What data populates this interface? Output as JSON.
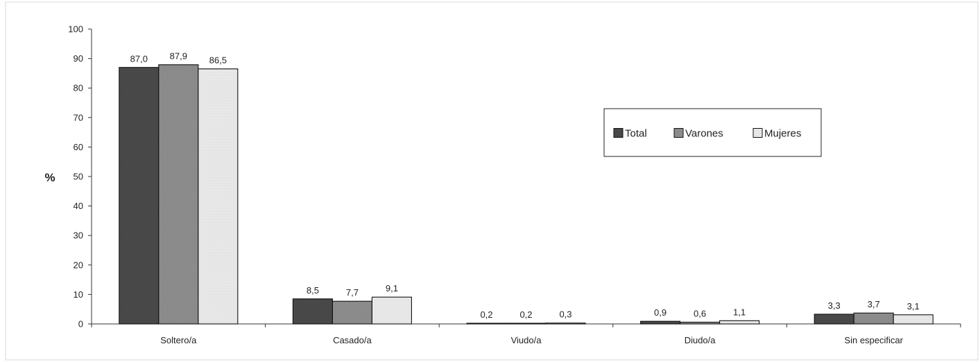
{
  "chart_data": {
    "type": "bar",
    "categories": [
      "Soltero/a",
      "Casado/a",
      "Viudo/a",
      "Diudo/a",
      "Sin especificar"
    ],
    "series": [
      {
        "name": "Total",
        "values": [
          87.0,
          8.5,
          0.2,
          0.9,
          3.3
        ],
        "labels": [
          "87,0",
          "8,5",
          "0,2",
          "0,9",
          "3,3"
        ],
        "color": "#4a4a4a"
      },
      {
        "name": "Varones",
        "values": [
          87.9,
          7.7,
          0.2,
          0.6,
          3.7
        ],
        "labels": [
          "87,9",
          "7,7",
          "0,2",
          "0,6",
          "3,7"
        ],
        "color": "#8e8e8e"
      },
      {
        "name": "Mujeres",
        "values": [
          86.5,
          9.1,
          0.3,
          1.1,
          3.1
        ],
        "labels": [
          "86,5",
          "9,1",
          "0,3",
          "1,1",
          "3,1"
        ],
        "color": "#ececec"
      }
    ],
    "ylabel": "%",
    "ylim": [
      0,
      100
    ],
    "yticks": [
      "0",
      "10",
      "20",
      "30",
      "40",
      "50",
      "60",
      "70",
      "80",
      "90",
      "100"
    ],
    "legend_position": "inside-top-right",
    "grid": false
  }
}
